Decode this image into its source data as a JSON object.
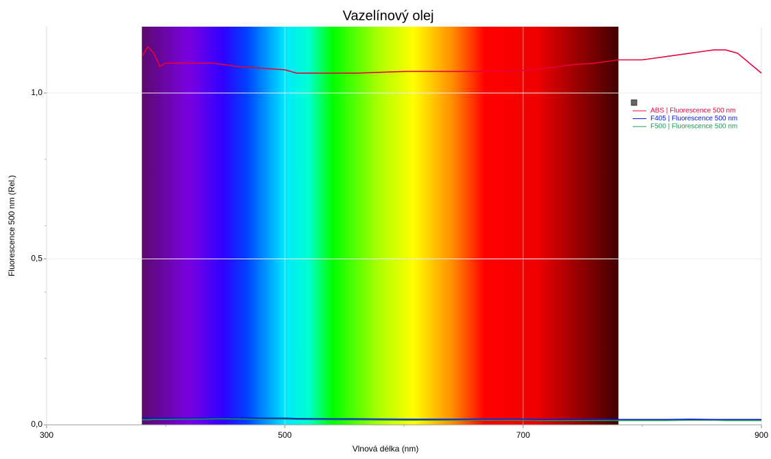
{
  "chart_data": {
    "type": "line",
    "title": "Vazelínový olej",
    "xlabel": "Vlnová délka (nm)",
    "ylabel": "Fluorescence 500 nm (Rel.)",
    "x": [
      380,
      385,
      390,
      395,
      400,
      410,
      420,
      440,
      460,
      480,
      500,
      510,
      540,
      560,
      600,
      640,
      680,
      700,
      720,
      740,
      760,
      780,
      800,
      820,
      840,
      860,
      870,
      880,
      890,
      900
    ],
    "series": [
      {
        "name": "ABS | Fluorescence 500 nm",
        "color": "#e8003a",
        "values": [
          1.11,
          1.14,
          1.12,
          1.08,
          1.09,
          1.09,
          1.09,
          1.09,
          1.08,
          1.075,
          1.07,
          1.06,
          1.06,
          1.06,
          1.065,
          1.065,
          1.065,
          1.068,
          1.075,
          1.085,
          1.09,
          1.1,
          1.1,
          1.11,
          1.12,
          1.13,
          1.13,
          1.12,
          1.09,
          1.06
        ]
      },
      {
        "name": "F405 | Fluorescence 500 nm",
        "color": "#0018e0",
        "values": [
          0.02,
          0.02,
          0.02,
          0.02,
          0.02,
          0.02,
          0.02,
          0.021,
          0.021,
          0.02,
          0.02,
          0.019,
          0.018,
          0.018,
          0.017,
          0.017,
          0.017,
          0.017,
          0.016,
          0.016,
          0.016,
          0.016,
          0.016,
          0.016,
          0.017,
          0.016,
          0.016,
          0.016,
          0.016,
          0.016
        ]
      },
      {
        "name": "F500 | Fluorescence 500 nm",
        "color": "#1a9a50",
        "values": [
          0.015,
          0.015,
          0.016,
          0.016,
          0.016,
          0.017,
          0.017,
          0.018,
          0.018,
          0.017,
          0.017,
          0.016,
          0.015,
          0.015,
          0.014,
          0.014,
          0.014,
          0.014,
          0.013,
          0.013,
          0.013,
          0.013,
          0.013,
          0.013,
          0.014,
          0.014,
          0.013,
          0.013,
          0.013,
          0.013
        ]
      }
    ],
    "xlim": [
      300,
      900
    ],
    "ylim": [
      0,
      1.2
    ],
    "xticks": [
      300,
      500,
      700,
      900
    ],
    "xticks_minor": [
      400,
      600,
      800
    ],
    "yticks": [
      {
        "value": 0,
        "label": "0,0"
      },
      {
        "value": 0.5,
        "label": "0,5"
      },
      {
        "value": 1,
        "label": "1,0"
      }
    ],
    "yticks_minor": [
      0.2,
      0.4,
      0.6,
      0.8
    ],
    "spectrum_band": [
      380,
      780
    ],
    "grid": true,
    "legend": "upper right"
  }
}
